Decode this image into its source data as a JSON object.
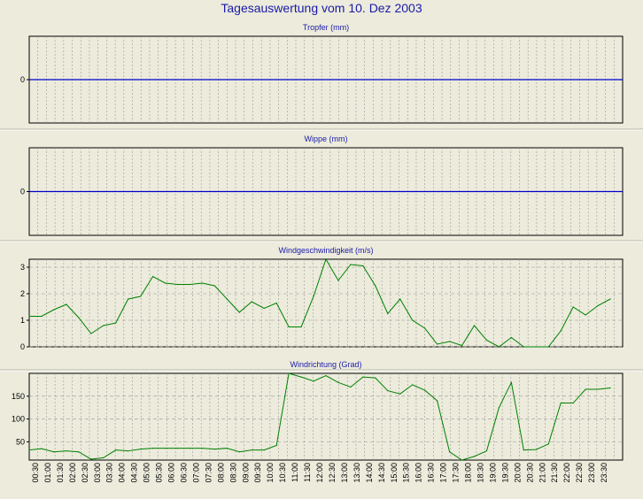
{
  "page_title": "Tagesauswertung vom 10. Dez 2003",
  "colors": {
    "background": "#ecebdc",
    "title": "#1a1aa8",
    "zero_line": "#0000cc",
    "series_line": "#008000",
    "grid": "#999999"
  },
  "x_tick_labels": [
    "00:30",
    "01:00",
    "01:30",
    "02:00",
    "02:30",
    "03:00",
    "03:30",
    "04:00",
    "04:30",
    "05:00",
    "05:30",
    "06:00",
    "06:30",
    "07:00",
    "07:30",
    "08:00",
    "08:30",
    "09:00",
    "09:30",
    "10:00",
    "10:30",
    "11:00",
    "11:30",
    "12:00",
    "12:30",
    "13:00",
    "13:30",
    "14:00",
    "14:30",
    "15:00",
    "15:30",
    "16:00",
    "16:30",
    "17:00",
    "17:30",
    "18:00",
    "18:30",
    "19:00",
    "19:30",
    "20:00",
    "20:30",
    "21:00",
    "21:30",
    "22:00",
    "22:30",
    "23:00",
    "23:30"
  ],
  "chart_data": [
    {
      "type": "line",
      "title": "Tropfer (mm)",
      "yticks": [
        0
      ],
      "ylim": [
        -1,
        1
      ],
      "series": [
        {
          "values": [
            0,
            0,
            0,
            0,
            0,
            0,
            0,
            0,
            0,
            0,
            0,
            0,
            0,
            0,
            0,
            0,
            0,
            0,
            0,
            0,
            0,
            0,
            0,
            0,
            0,
            0,
            0,
            0,
            0,
            0,
            0,
            0,
            0,
            0,
            0,
            0,
            0,
            0,
            0,
            0,
            0,
            0,
            0,
            0,
            0,
            0,
            0
          ]
        }
      ]
    },
    {
      "type": "line",
      "title": "Wippe (mm)",
      "yticks": [
        0
      ],
      "ylim": [
        -1,
        1
      ],
      "series": [
        {
          "values": [
            0,
            0,
            0,
            0,
            0,
            0,
            0,
            0,
            0,
            0,
            0,
            0,
            0,
            0,
            0,
            0,
            0,
            0,
            0,
            0,
            0,
            0,
            0,
            0,
            0,
            0,
            0,
            0,
            0,
            0,
            0,
            0,
            0,
            0,
            0,
            0,
            0,
            0,
            0,
            0,
            0,
            0,
            0,
            0,
            0,
            0,
            0
          ]
        }
      ]
    },
    {
      "type": "line",
      "title": "Windgeschwindigkeit (m/s)",
      "yticks": [
        0,
        1,
        2,
        3
      ],
      "ylim": [
        0,
        3.3
      ],
      "series": [
        {
          "values": [
            1.15,
            1.15,
            1.4,
            1.6,
            1.1,
            0.5,
            0.8,
            0.9,
            1.8,
            1.9,
            2.65,
            2.4,
            2.35,
            2.35,
            2.4,
            2.3,
            1.8,
            1.3,
            1.7,
            1.45,
            1.65,
            0.75,
            0.75,
            1.9,
            3.3,
            2.5,
            3.1,
            3.05,
            2.3,
            1.25,
            1.8,
            1.0,
            0.7,
            0.1,
            0.2,
            0.05,
            0.8,
            0.25,
            0.0,
            0.35,
            0.0,
            0.0,
            0.0,
            0.6,
            1.5,
            1.2,
            1.55,
            1.8
          ]
        }
      ]
    },
    {
      "type": "line",
      "title": "Windrichtung (Grad)",
      "yticks": [
        50,
        100,
        150
      ],
      "ylim": [
        10,
        200
      ],
      "series": [
        {
          "values": [
            32,
            35,
            28,
            30,
            28,
            12,
            15,
            32,
            30,
            34,
            36,
            36,
            36,
            36,
            36,
            34,
            36,
            28,
            32,
            32,
            42,
            200,
            192,
            183,
            195,
            180,
            170,
            192,
            190,
            162,
            155,
            175,
            163,
            140,
            28,
            10,
            18,
            30,
            125,
            180,
            32,
            33,
            45,
            135,
            135,
            165,
            165,
            168
          ]
        }
      ]
    }
  ]
}
